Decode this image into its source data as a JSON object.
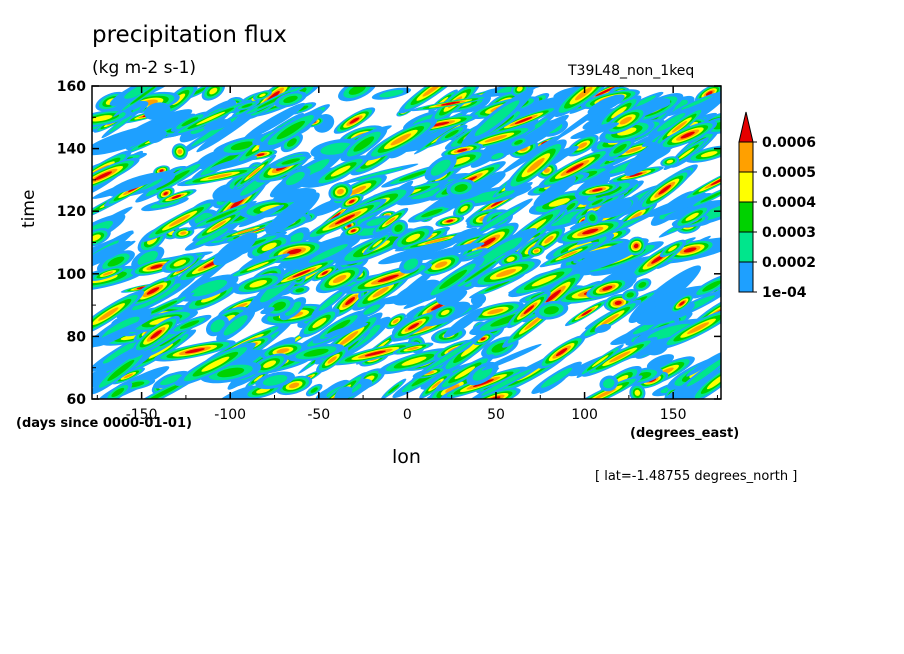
{
  "chart_data": {
    "type": "heatmap",
    "title": "precipitation flux",
    "units": "(kg m-2 s-1)",
    "run_label": "T39L48_non_1keq",
    "xlabel": "lon",
    "ylabel": "time",
    "x_units": "(degrees_east)",
    "y_units": "(days since 0000-01-01)",
    "footnote": "[ lat=-1.48755 degrees_north ]",
    "xlim": [
      -178,
      177
    ],
    "ylim": [
      60,
      160
    ],
    "x_ticks": [
      -150,
      -100,
      -50,
      0,
      50,
      100,
      150
    ],
    "y_ticks": [
      60,
      80,
      100,
      120,
      140,
      160
    ],
    "x_tick_labels": [
      "-150",
      "-100",
      "-50",
      "0",
      "50",
      "100",
      "150"
    ],
    "y_tick_labels": [
      "60",
      "80",
      "100",
      "120",
      "140",
      "160"
    ],
    "colorbar": {
      "levels": [
        "1e-04",
        "0.0002",
        "0.0003",
        "0.0004",
        "0.0005",
        "0.0006"
      ],
      "colors": [
        "#1ea0ff",
        "#00e68c",
        "#00d200",
        "#ffff00",
        "#ffa000",
        "#e60000"
      ]
    },
    "grid": false
  }
}
